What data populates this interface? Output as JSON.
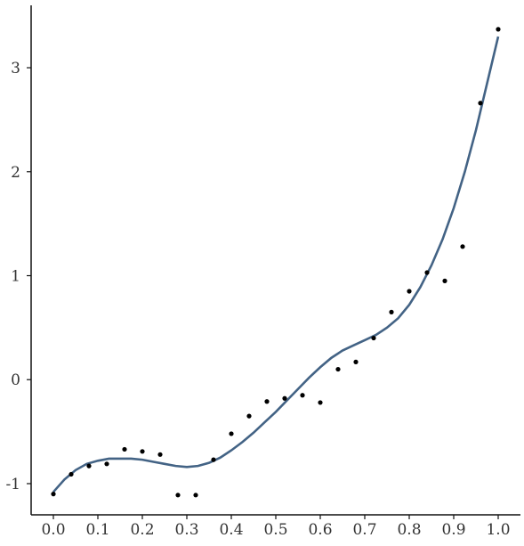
{
  "chart_data": {
    "type": "scatter",
    "title": "",
    "xlabel": "",
    "ylabel": "",
    "xlim": [
      -0.05,
      1.05
    ],
    "ylim": [
      -1.3,
      3.6
    ],
    "grid": false,
    "legend": "none",
    "x_ticks": [
      {
        "value": 0.0,
        "label": "0.0"
      },
      {
        "value": 0.1,
        "label": "0.1"
      },
      {
        "value": 0.2,
        "label": "0.2"
      },
      {
        "value": 0.3,
        "label": "0.3"
      },
      {
        "value": 0.4,
        "label": "0.4"
      },
      {
        "value": 0.5,
        "label": "0.5"
      },
      {
        "value": 0.6,
        "label": "0.6"
      },
      {
        "value": 0.7,
        "label": "0.7"
      },
      {
        "value": 0.8,
        "label": "0.8"
      },
      {
        "value": 0.9,
        "label": "0.9"
      },
      {
        "value": 1.0,
        "label": "1.0"
      }
    ],
    "y_ticks": [
      {
        "value": -1,
        "label": "-1"
      },
      {
        "value": 0,
        "label": "0"
      },
      {
        "value": 1,
        "label": "1"
      },
      {
        "value": 2,
        "label": "2"
      },
      {
        "value": 3,
        "label": "3"
      }
    ],
    "series": [
      {
        "kind": "points",
        "color": "#000000",
        "x": [
          0.0,
          0.04,
          0.08,
          0.12,
          0.16,
          0.2,
          0.24,
          0.28,
          0.32,
          0.36,
          0.4,
          0.44,
          0.48,
          0.52,
          0.56,
          0.6,
          0.64,
          0.68,
          0.72,
          0.76,
          0.8,
          0.84,
          0.88,
          0.92,
          0.96,
          1.0
        ],
        "y": [
          -1.1,
          -0.91,
          -0.83,
          -0.81,
          -0.67,
          -0.69,
          -0.72,
          -1.11,
          -1.11,
          -0.77,
          -0.52,
          -0.35,
          -0.21,
          -0.18,
          -0.15,
          -0.22,
          0.1,
          0.17,
          0.4,
          0.65,
          0.85,
          1.03,
          0.95,
          1.28,
          2.66,
          3.37
        ]
      },
      {
        "kind": "fitted-curve",
        "color": "#436385",
        "x": [
          0.0,
          0.025,
          0.05,
          0.075,
          0.1,
          0.125,
          0.15,
          0.175,
          0.2,
          0.225,
          0.25,
          0.275,
          0.3,
          0.325,
          0.35,
          0.375,
          0.4,
          0.425,
          0.45,
          0.475,
          0.5,
          0.525,
          0.55,
          0.575,
          0.6,
          0.625,
          0.65,
          0.675,
          0.7,
          0.725,
          0.75,
          0.775,
          0.8,
          0.825,
          0.85,
          0.875,
          0.9,
          0.925,
          0.95,
          0.975,
          1.0
        ],
        "y": [
          -1.08,
          -0.96,
          -0.87,
          -0.81,
          -0.78,
          -0.76,
          -0.76,
          -0.76,
          -0.77,
          -0.79,
          -0.81,
          -0.83,
          -0.84,
          -0.83,
          -0.8,
          -0.75,
          -0.68,
          -0.6,
          -0.51,
          -0.41,
          -0.31,
          -0.2,
          -0.09,
          0.02,
          0.12,
          0.21,
          0.28,
          0.33,
          0.38,
          0.43,
          0.5,
          0.59,
          0.72,
          0.89,
          1.1,
          1.35,
          1.65,
          2.0,
          2.4,
          2.85,
          3.3
        ]
      }
    ]
  }
}
